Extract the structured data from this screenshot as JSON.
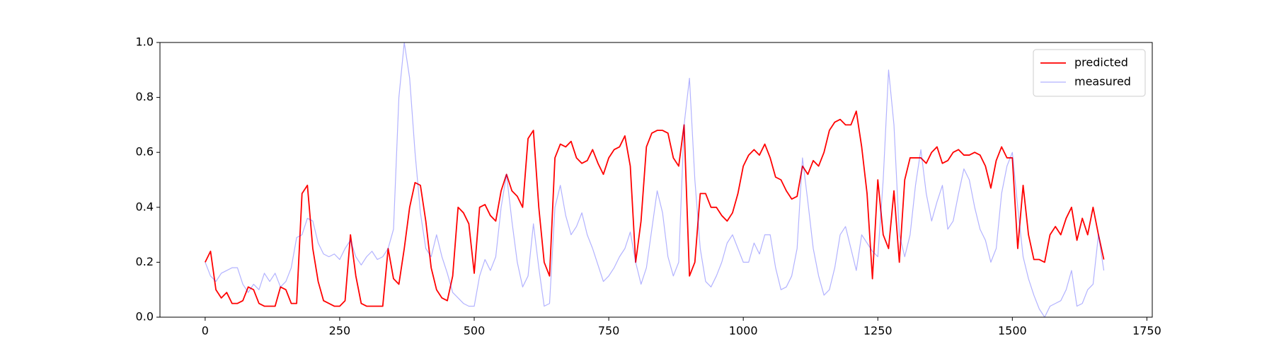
{
  "chart_data": {
    "type": "line",
    "x": [
      0,
      10,
      20,
      30,
      40,
      50,
      60,
      70,
      80,
      90,
      100,
      110,
      120,
      130,
      140,
      150,
      160,
      170,
      180,
      190,
      200,
      210,
      220,
      230,
      240,
      250,
      260,
      270,
      280,
      290,
      300,
      310,
      320,
      330,
      340,
      350,
      360,
      370,
      380,
      390,
      400,
      410,
      420,
      430,
      440,
      450,
      460,
      470,
      480,
      490,
      500,
      510,
      520,
      530,
      540,
      550,
      560,
      570,
      580,
      590,
      600,
      610,
      620,
      630,
      640,
      650,
      660,
      670,
      680,
      690,
      700,
      710,
      720,
      730,
      740,
      750,
      760,
      770,
      780,
      790,
      800,
      810,
      820,
      830,
      840,
      850,
      860,
      870,
      880,
      890,
      900,
      910,
      920,
      930,
      940,
      950,
      960,
      970,
      980,
      990,
      1000,
      1010,
      1020,
      1030,
      1040,
      1050,
      1060,
      1070,
      1080,
      1090,
      1100,
      1110,
      1120,
      1130,
      1140,
      1150,
      1160,
      1170,
      1180,
      1190,
      1200,
      1210,
      1220,
      1230,
      1240,
      1250,
      1260,
      1270,
      1280,
      1290,
      1300,
      1310,
      1320,
      1330,
      1340,
      1350,
      1360,
      1370,
      1380,
      1390,
      1400,
      1410,
      1420,
      1430,
      1440,
      1450,
      1460,
      1470,
      1480,
      1490,
      1500,
      1510,
      1520,
      1530,
      1540,
      1550,
      1560,
      1570,
      1580,
      1590,
      1600,
      1610,
      1620,
      1630,
      1640,
      1650,
      1660,
      1670
    ],
    "series": [
      {
        "name": "predicted",
        "color": "#ff0000",
        "width": 1.8,
        "opacity": 1,
        "values": [
          0.2,
          0.24,
          0.1,
          0.07,
          0.09,
          0.05,
          0.05,
          0.06,
          0.11,
          0.1,
          0.05,
          0.04,
          0.04,
          0.04,
          0.11,
          0.1,
          0.05,
          0.05,
          0.45,
          0.48,
          0.25,
          0.13,
          0.06,
          0.05,
          0.04,
          0.04,
          0.06,
          0.3,
          0.15,
          0.05,
          0.04,
          0.04,
          0.04,
          0.04,
          0.25,
          0.14,
          0.12,
          0.25,
          0.4,
          0.49,
          0.48,
          0.35,
          0.18,
          0.1,
          0.07,
          0.06,
          0.15,
          0.4,
          0.38,
          0.34,
          0.16,
          0.4,
          0.41,
          0.37,
          0.35,
          0.46,
          0.52,
          0.46,
          0.44,
          0.4,
          0.65,
          0.68,
          0.4,
          0.2,
          0.15,
          0.58,
          0.63,
          0.62,
          0.64,
          0.58,
          0.56,
          0.57,
          0.61,
          0.56,
          0.52,
          0.58,
          0.61,
          0.62,
          0.66,
          0.55,
          0.2,
          0.35,
          0.62,
          0.67,
          0.68,
          0.68,
          0.67,
          0.58,
          0.55,
          0.7,
          0.15,
          0.2,
          0.45,
          0.45,
          0.4,
          0.4,
          0.37,
          0.35,
          0.38,
          0.45,
          0.55,
          0.59,
          0.61,
          0.59,
          0.63,
          0.58,
          0.51,
          0.5,
          0.46,
          0.43,
          0.44,
          0.55,
          0.52,
          0.57,
          0.55,
          0.6,
          0.68,
          0.71,
          0.72,
          0.7,
          0.7,
          0.75,
          0.62,
          0.45,
          0.14,
          0.5,
          0.3,
          0.25,
          0.46,
          0.2,
          0.5,
          0.58,
          0.58,
          0.58,
          0.56,
          0.6,
          0.62,
          0.56,
          0.57,
          0.6,
          0.61,
          0.59,
          0.59,
          0.6,
          0.59,
          0.55,
          0.47,
          0.57,
          0.62,
          0.58,
          0.58,
          0.25,
          0.48,
          0.3,
          0.21,
          0.21,
          0.2,
          0.3,
          0.33,
          0.3,
          0.36,
          0.4,
          0.28,
          0.36,
          0.3,
          0.4,
          0.3,
          0.21
        ]
      },
      {
        "name": "measured",
        "color": "#0000ff",
        "width": 1.2,
        "opacity": 0.3,
        "values": [
          0.2,
          0.15,
          0.13,
          0.16,
          0.17,
          0.18,
          0.18,
          0.12,
          0.09,
          0.12,
          0.1,
          0.16,
          0.13,
          0.16,
          0.11,
          0.13,
          0.18,
          0.29,
          0.3,
          0.36,
          0.35,
          0.27,
          0.23,
          0.22,
          0.23,
          0.21,
          0.25,
          0.28,
          0.22,
          0.19,
          0.22,
          0.24,
          0.21,
          0.22,
          0.25,
          0.32,
          0.8,
          1.0,
          0.87,
          0.6,
          0.38,
          0.25,
          0.22,
          0.3,
          0.22,
          0.16,
          0.09,
          0.07,
          0.05,
          0.04,
          0.04,
          0.15,
          0.21,
          0.17,
          0.22,
          0.4,
          0.52,
          0.35,
          0.2,
          0.11,
          0.15,
          0.34,
          0.18,
          0.04,
          0.05,
          0.4,
          0.48,
          0.37,
          0.3,
          0.33,
          0.38,
          0.3,
          0.25,
          0.19,
          0.13,
          0.15,
          0.18,
          0.22,
          0.25,
          0.31,
          0.2,
          0.12,
          0.18,
          0.32,
          0.46,
          0.38,
          0.22,
          0.15,
          0.2,
          0.7,
          0.87,
          0.5,
          0.25,
          0.13,
          0.11,
          0.15,
          0.2,
          0.27,
          0.3,
          0.25,
          0.2,
          0.2,
          0.27,
          0.23,
          0.3,
          0.3,
          0.18,
          0.1,
          0.11,
          0.15,
          0.25,
          0.58,
          0.42,
          0.25,
          0.15,
          0.08,
          0.1,
          0.18,
          0.3,
          0.33,
          0.25,
          0.17,
          0.3,
          0.27,
          0.24,
          0.22,
          0.5,
          0.9,
          0.7,
          0.3,
          0.22,
          0.3,
          0.48,
          0.61,
          0.45,
          0.35,
          0.42,
          0.48,
          0.32,
          0.35,
          0.45,
          0.54,
          0.5,
          0.4,
          0.32,
          0.28,
          0.2,
          0.25,
          0.45,
          0.55,
          0.6,
          0.4,
          0.22,
          0.14,
          0.08,
          0.03,
          0.0,
          0.04,
          0.05,
          0.06,
          0.1,
          0.17,
          0.04,
          0.05,
          0.1,
          0.12,
          0.3,
          0.17
        ]
      }
    ],
    "xlim": [
      -84,
      1760
    ],
    "ylim": [
      0,
      1
    ],
    "xticks": [
      0,
      250,
      500,
      750,
      1000,
      1250,
      1500,
      1750
    ],
    "yticks": [
      {
        "value": 0,
        "label": "0.0"
      },
      {
        "value": 0.2,
        "label": "0.2"
      },
      {
        "value": 0.4,
        "label": "0.4"
      },
      {
        "value": 0.6,
        "label": "0.6"
      },
      {
        "value": 0.8,
        "label": "0.8"
      },
      {
        "value": 1,
        "label": "1.0"
      }
    ],
    "grid": false,
    "legend": "upper right"
  }
}
